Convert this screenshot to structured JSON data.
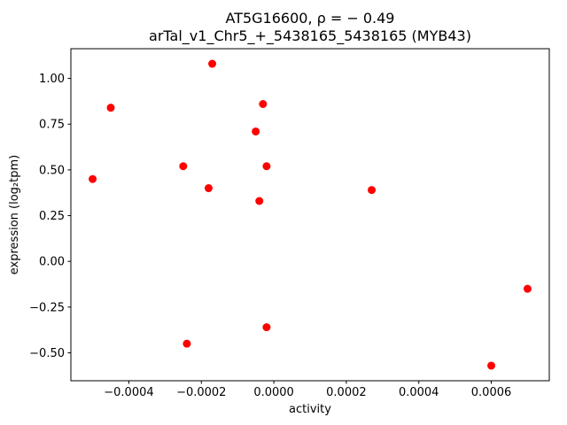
{
  "figure": {
    "background_color": "#ffffff",
    "frame_color": "#000000",
    "text_color": "#000000"
  },
  "chart_data": {
    "type": "scatter",
    "title_lines": [
      "AT5G16600, ρ = − 0.49",
      "arTal_v1_Chr5_+_5438165_5438165 (MYB43)"
    ],
    "xlabel": "activity",
    "ylabel": "expression (log₂tpm)",
    "marker_color": "#ff0000",
    "grid": false,
    "legend": null,
    "xlim": [
      -0.00056,
      0.00076
    ],
    "ylim": [
      -0.6525,
      1.1625
    ],
    "xticks": {
      "values": [
        -0.0004,
        -0.0002,
        0.0,
        0.0002,
        0.0004,
        0.0006
      ],
      "labels": [
        "−0.0004",
        "−0.0002",
        "0.0000",
        "0.0002",
        "0.0004",
        "0.0006"
      ]
    },
    "yticks": {
      "values": [
        -0.5,
        -0.25,
        0.0,
        0.25,
        0.5,
        0.75,
        1.0
      ],
      "labels": [
        "−0.50",
        "−0.25",
        "0.00",
        "0.25",
        "0.50",
        "0.75",
        "1.00"
      ]
    },
    "points": [
      [
        -0.0005,
        0.45
      ],
      [
        -0.00045,
        0.84
      ],
      [
        -0.00025,
        0.52
      ],
      [
        -0.00024,
        -0.45
      ],
      [
        -0.00017,
        1.08
      ],
      [
        -0.00018,
        0.4
      ],
      [
        -5e-05,
        0.71
      ],
      [
        -3e-05,
        0.86
      ],
      [
        -2e-05,
        0.52
      ],
      [
        -4e-05,
        0.33
      ],
      [
        -2e-05,
        -0.36
      ],
      [
        0.00027,
        0.39
      ],
      [
        0.0006,
        -0.57
      ],
      [
        0.0007,
        -0.15
      ]
    ]
  }
}
